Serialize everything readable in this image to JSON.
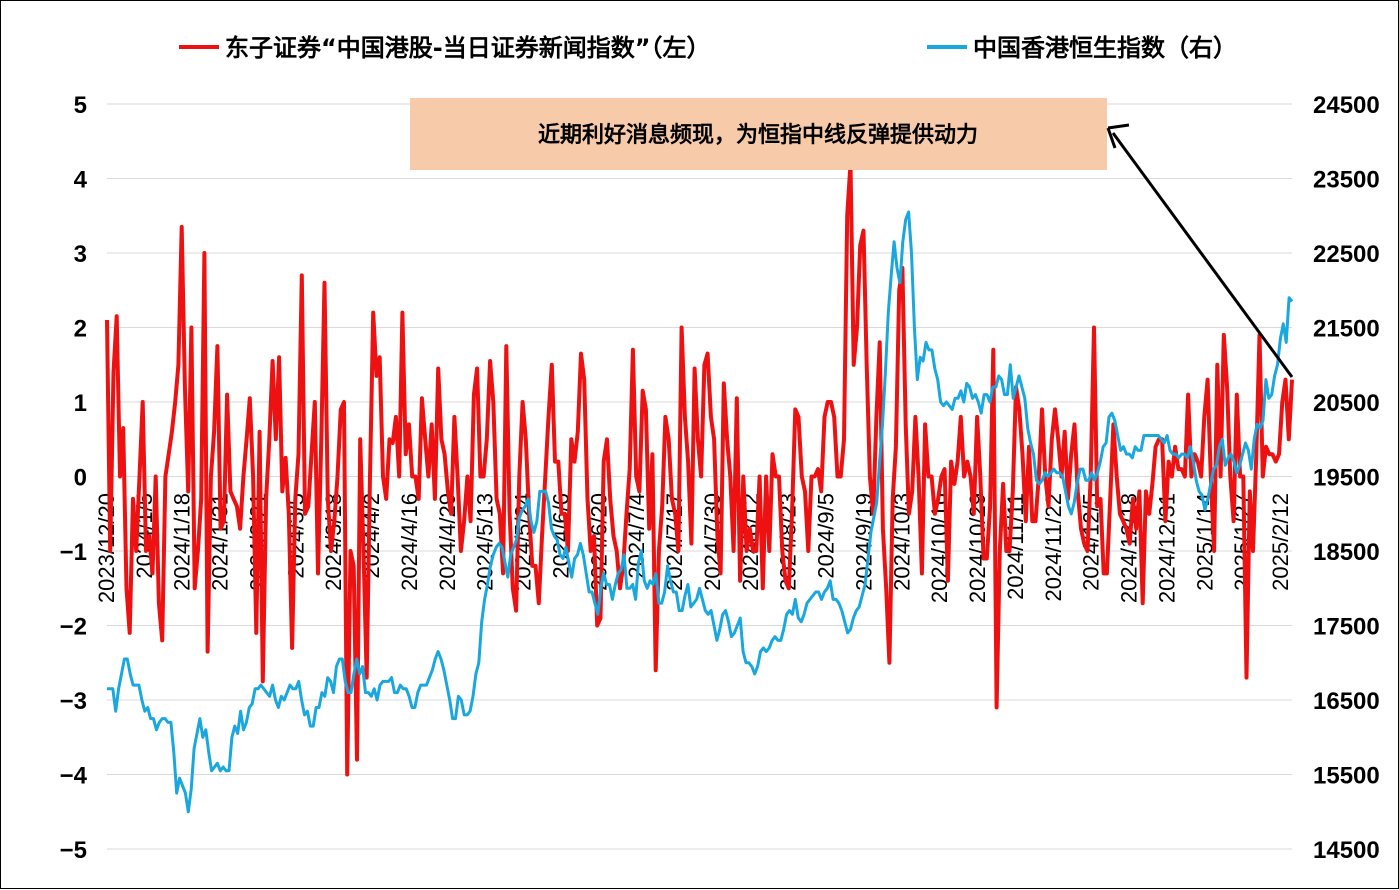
{
  "chart_data": {
    "type": "line",
    "legend": {
      "position": "top",
      "series_left_label": "东子证券“中国港股-当日证券新闻指数”（左）",
      "series_right_label": "中国香港恒生指数（右）"
    },
    "annotation": "近期利好消息频现，为恒指中线反弹提供动力",
    "colors": {
      "left": "#ee1111",
      "right": "#1aa7de",
      "annotation_bg": "#f7cbaa",
      "grid": "#d9d9d9"
    },
    "left_axis": {
      "min": -5,
      "max": 5,
      "ticks": [
        "5",
        "4",
        "3",
        "2",
        "1",
        "0",
        "−1",
        "−2",
        "−3",
        "−4",
        "−5"
      ]
    },
    "right_axis": {
      "min": 14500,
      "max": 24500,
      "ticks": [
        "24500",
        "23500",
        "22500",
        "21500",
        "20500",
        "19500",
        "18500",
        "17500",
        "16500",
        "15500",
        "14500"
      ]
    },
    "x_tick_labels": [
      "2023/12/20",
      "2024/1/5",
      "2024/1/18",
      "2024/1/31",
      "2024/2/21",
      "2024/3/5",
      "2024/3/18",
      "2024/4/2",
      "2024/4/16",
      "2024/4/29",
      "2024/5/13",
      "2024/5/24",
      "2024/6/6",
      "2024/6/20",
      "2024/7/4",
      "2024/7/17",
      "2024/7/30",
      "2024/8/12",
      "2024/8/23",
      "2024/9/5",
      "2024/9/19",
      "2024/10/3",
      "2024/10/16",
      "2024/10/29",
      "2024/11/11",
      "2024/11/22",
      "2024/12/5",
      "2024/12/18",
      "2024/12/31",
      "2025/1/14",
      "2025/1/27",
      "2025/2/12"
    ],
    "news_index": [
      2.1,
      -1.0,
      1.4,
      2.15,
      0.0,
      0.65,
      -1.5,
      -2.1,
      -0.3,
      -1.0,
      0.0,
      1.0,
      -1.0,
      -0.8,
      -1.3,
      0.0,
      -1.7,
      -2.2,
      0.0,
      0.3,
      0.6,
      1.0,
      1.5,
      3.35,
      1.2,
      -0.2,
      2.0,
      -1.5,
      -1.0,
      -0.3,
      3.0,
      -2.35,
      0.0,
      0.6,
      1.75,
      -0.7,
      -0.6,
      1.1,
      -0.2,
      -0.3,
      -0.4,
      -0.7,
      0.0,
      0.5,
      1.05,
      0.0,
      -2.1,
      0.6,
      -2.75,
      -0.3,
      0.5,
      1.55,
      0.5,
      1.6,
      -0.2,
      0.25,
      -0.5,
      -2.3,
      -0.3,
      0.3,
      2.7,
      -0.5,
      -0.4,
      0.3,
      1.0,
      -1.3,
      0.5,
      2.6,
      -0.3,
      -1.0,
      -0.6,
      0.0,
      0.9,
      1.0,
      -4.0,
      -1.0,
      -1.2,
      -3.8,
      0.5,
      -1.0,
      -2.7,
      0.0,
      2.2,
      1.35,
      1.6,
      0.0,
      -0.3,
      0.5,
      0.45,
      0.8,
      0.0,
      2.2,
      0.3,
      0.7,
      0.0,
      0.0,
      -0.3,
      1.05,
      0.5,
      0.0,
      0.7,
      -0.3,
      1.45,
      0.5,
      0.3,
      -0.2,
      -0.5,
      0.8,
      0.0,
      -1.0,
      -0.6,
      0.0,
      -0.6,
      1.1,
      1.45,
      0.0,
      0.0,
      0.5,
      1.55,
      1.0,
      -0.3,
      -0.5,
      -1.3,
      1.75,
      -0.5,
      -1.5,
      -1.8,
      0.0,
      1.0,
      0.5,
      -0.5,
      -1.2,
      -1.2,
      -1.7,
      -0.8,
      0.0,
      0.8,
      1.5,
      0.2,
      0.2,
      -0.5,
      -0.5,
      -1.0,
      0.5,
      0.2,
      0.6,
      1.65,
      1.3,
      -0.3,
      -1.0,
      -0.8,
      -2.0,
      -1.9,
      0.2,
      0.5,
      -0.3,
      -0.8,
      -1.0,
      -1.5,
      -1.2,
      -0.5,
      0.1,
      1.7,
      0.0,
      -0.2,
      1.15,
      0.9,
      -0.7,
      0.3,
      -2.6,
      -1.0,
      -0.4,
      0.8,
      0.5,
      -0.3,
      -0.5,
      -1.0,
      2.0,
      0.8,
      0.2,
      -0.9,
      1.45,
      0.5,
      0.0,
      1.5,
      1.65,
      0.8,
      0.5,
      -0.8,
      -1.3,
      1.25,
      0.5,
      0.0,
      -1.0,
      1.05,
      -1.4,
      0.0,
      -1.0,
      -0.7,
      -1.0,
      -1.0,
      0.0,
      -1.5,
      0.0,
      -1.0,
      0.3,
      0.0,
      0.0,
      -1.0,
      -1.4,
      -1.5,
      -0.5,
      0.9,
      0.8,
      0.0,
      -0.2,
      -1.0,
      0.0,
      0.0,
      0.1,
      -0.2,
      0.8,
      1.0,
      1.0,
      0.8,
      0.0,
      0.0,
      0.5,
      3.5,
      4.2,
      1.5,
      2.0,
      3.1,
      3.3,
      1.5,
      0.0,
      -0.5,
      0.8,
      1.8,
      -0.7,
      -1.5,
      -2.5,
      -0.3,
      0.4,
      2.5,
      2.8,
      0.7,
      -0.5,
      -0.2,
      0.8,
      0.0,
      -1.3,
      0.7,
      0.0,
      0.0,
      -0.5,
      -0.3,
      0.0,
      0.1,
      -1.4,
      0.2,
      -0.1,
      0.2,
      0.8,
      0.0,
      0.2,
      0.0,
      -0.5,
      0.8,
      0.0,
      -1.1,
      -1.1,
      -0.4,
      1.7,
      -3.1,
      -1.0,
      -0.1,
      -1.0,
      -1.0,
      -0.2,
      1.2,
      0.9,
      0.3,
      -0.6,
      0.4,
      -0.6,
      -0.6,
      0.0,
      0.9,
      0.0,
      -0.4,
      0.5,
      0.9,
      0.5,
      0.0,
      0.6,
      -0.3,
      0.3,
      0.7,
      -0.2,
      -0.7,
      -0.9,
      -1.0,
      0.0,
      2.0,
      -0.4,
      -0.3,
      -1.3,
      -1.3,
      -0.3,
      0.7,
      0.0,
      -0.5,
      -0.6,
      -0.7,
      -0.9,
      -0.3,
      -0.7,
      -0.2,
      -1.7,
      -0.2,
      -0.5,
      -0.1,
      0.4,
      0.5,
      0.5,
      -0.6,
      0.2,
      0.0,
      0.4,
      0.1,
      0.1,
      0.0,
      1.1,
      0.0,
      0.3,
      0.2,
      0.0,
      0.8,
      1.3,
      0.0,
      -1.0,
      1.5,
      0.0,
      1.9,
      1.2,
      0.0,
      -0.6,
      1.1,
      0.0,
      0.0,
      -2.7,
      -0.2,
      -1.0,
      0.3,
      1.9,
      0.0,
      0.4,
      0.3,
      0.3,
      0.2,
      0.3,
      1.0,
      1.3,
      0.5,
      1.3
    ],
    "hang_seng": [
      16650,
      16650,
      16650,
      16350,
      16650,
      16850,
      17050,
      17050,
      16850,
      16700,
      16700,
      16700,
      16500,
      16350,
      16400,
      16250,
      16250,
      16100,
      16200,
      16250,
      16250,
      16200,
      16200,
      15800,
      15250,
      15450,
      15350,
      15250,
      15000,
      15300,
      15850,
      16050,
      16250,
      16000,
      16100,
      15800,
      15550,
      15600,
      15650,
      15550,
      15600,
      15550,
      15550,
      16000,
      16150,
      16050,
      16350,
      16100,
      16200,
      16400,
      16450,
      16650,
      16650,
      16700,
      16650,
      16600,
      16550,
      16700,
      16500,
      16400,
      16550,
      16500,
      16600,
      16700,
      16650,
      16650,
      16750,
      16500,
      16300,
      16350,
      16150,
      16150,
      16400,
      16400,
      16600,
      16550,
      16800,
      16750,
      16600,
      16950,
      17050,
      17050,
      16750,
      16600,
      16600,
      16850,
      17050,
      16850,
      16950,
      16600,
      16600,
      16550,
      16650,
      16500,
      16700,
      16750,
      16750,
      16750,
      16800,
      16600,
      16600,
      16700,
      16650,
      16650,
      16550,
      16400,
      16400,
      16600,
      16700,
      16700,
      16700,
      16800,
      16900,
      17050,
      17150,
      17050,
      16900,
      16700,
      16500,
      16250,
      16250,
      16550,
      16500,
      16300,
      16300,
      16350,
      16550,
      16850,
      17000,
      17550,
      17850,
      18050,
      18300,
      18450,
      18550,
      18600,
      18550,
      18350,
      18150,
      18450,
      18550,
      18650,
      18950,
      19050,
      19100,
      19200,
      18900,
      18750,
      18900,
      19300,
      19300,
      19300,
      19150,
      18800,
      18700,
      18650,
      18450,
      18400,
      18550,
      18350,
      18150,
      18400,
      18450,
      18600,
      18450,
      18200,
      17950,
      17950,
      17800,
      17650,
      18000,
      18200,
      18050,
      18050,
      17850,
      18050,
      18200,
      18250,
      18450,
      18000,
      18000,
      18050,
      17850,
      18350,
      18500,
      18100,
      18000,
      18100,
      18050,
      18200,
      17800,
      17800,
      17950,
      18300,
      18100,
      17950,
      17950,
      17700,
      17700,
      17900,
      18050,
      17750,
      17800,
      17850,
      18000,
      17850,
      17700,
      17650,
      17700,
      17500,
      17300,
      17450,
      17650,
      17700,
      17550,
      17350,
      17400,
      17500,
      17600,
      17150,
      17000,
      17000,
      16950,
      16850,
      16950,
      17150,
      17200,
      17150,
      17200,
      17300,
      17350,
      17300,
      17300,
      17450,
      17650,
      17700,
      17650,
      17850,
      17600,
      17550,
      17650,
      17800,
      17850,
      17900,
      17950,
      17950,
      17850,
      17950,
      18000,
      18100,
      17850,
      17850,
      17800,
      17700,
      17550,
      17400,
      17450,
      17600,
      17700,
      17750,
      17900,
      18050,
      18400,
      18750,
      18950,
      19150,
      19700,
      20200,
      20900,
      21700,
      22200,
      22650,
      22300,
      22100,
      22650,
      22950,
      23050,
      22500,
      21500,
      20800,
      21100,
      21050,
      21300,
      21200,
      21200,
      20950,
      20800,
      20500,
      20450,
      20500,
      20450,
      20400,
      20550,
      20550,
      20650,
      20500,
      20750,
      20700,
      20550,
      20600,
      20500,
      20350,
      20600,
      20600,
      20500,
      20700,
      20700,
      20850,
      20800,
      20600,
      20600,
      21000,
      20550,
      20700,
      20850,
      20700,
      20550,
      20150,
      19950,
      19800,
      19450,
      19400,
      19450,
      19550,
      19500,
      19550,
      19600,
      19550,
      19550,
      19500,
      19300,
      19100,
      19000,
      19150,
      19400,
      19600,
      19600,
      19450,
      19450,
      19550,
      19450,
      19550,
      19700,
      19900,
      19950,
      20300,
      20350,
      20250,
      20050,
      19850,
      19900,
      19800,
      19800,
      19750,
      19900,
      19850,
      19850,
      20050,
      20050,
      20050,
      20050,
      20050,
      20050,
      20000,
      19950,
      20050,
      19850,
      19800,
      19800,
      19750,
      19800,
      19800,
      19750,
      19900,
      19700,
      19450,
      19300,
      19250,
      19050,
      19200,
      19400,
      19600,
      19650,
      19900,
      20000,
      19650,
      19750,
      19800,
      19700,
      19550,
      19650,
      19800,
      19950,
      19850,
      19600,
      20000,
      20200,
      20150,
      20250,
      20800,
      20550,
      20600,
      20850,
      21000,
      21350,
      21550,
      21300,
      21900,
      21850
    ]
  }
}
